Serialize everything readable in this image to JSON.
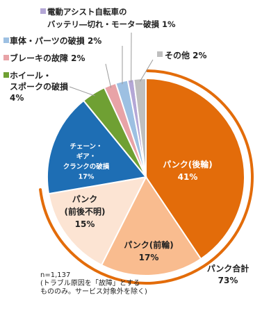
{
  "chart_data": {
    "type": "pie",
    "title": "",
    "slices": [
      {
        "key": "puncture-rear",
        "label_lines": [
          "パンク(後輪)",
          "41%"
        ],
        "value": 41,
        "color": "#E36C0A",
        "text_color": "#ffffff"
      },
      {
        "key": "puncture-front",
        "label_lines": [
          "パンク(前輪)",
          "17%"
        ],
        "value": 17,
        "color": "#F9BC8F",
        "text_color": "#222222"
      },
      {
        "key": "puncture-unknown",
        "label_lines": [
          "パンク",
          "(前後不明)",
          "15%"
        ],
        "value": 15,
        "color": "#FCE4D3",
        "text_color": "#222222"
      },
      {
        "key": "chain-gear-crank",
        "label_lines": [
          "チェーン・",
          "ギア・",
          "クランクの破損",
          "17%"
        ],
        "value": 17,
        "color": "#1E6EB4",
        "text_color": "#ffffff"
      },
      {
        "key": "wheel-spoke",
        "label_lines": [
          "ホイール・",
          "スポークの破損",
          "4%"
        ],
        "value": 4,
        "color": "#6FA033",
        "text_color": "#222222"
      },
      {
        "key": "brake",
        "label_lines": [
          "ブレーキの故障 2%"
        ],
        "value": 2,
        "color": "#E8A3A7",
        "text_color": "#222222"
      },
      {
        "key": "body-parts",
        "label_lines": [
          "車体・パーツの破損 2%"
        ],
        "value": 2,
        "color": "#9DC0E2",
        "text_color": "#222222"
      },
      {
        "key": "ebike-battery",
        "label_lines": [
          "電動アシスト自転車の",
          "バッテリ―切れ・モーター破損 1%"
        ],
        "value": 1,
        "color": "#B4A7D6",
        "text_color": "#222222"
      },
      {
        "key": "other",
        "label_lines": [
          "その他 2%"
        ],
        "value": 2,
        "color": "#BFBFBF",
        "text_color": "#222222"
      }
    ],
    "bracket": {
      "label_lines": [
        "パンク合計",
        "73%"
      ],
      "color": "#E36C0A"
    },
    "notes": [
      "n=1,137",
      "(トラブル原因を「故障」とする",
      "もののみ。サービス対象外を除く)"
    ]
  }
}
